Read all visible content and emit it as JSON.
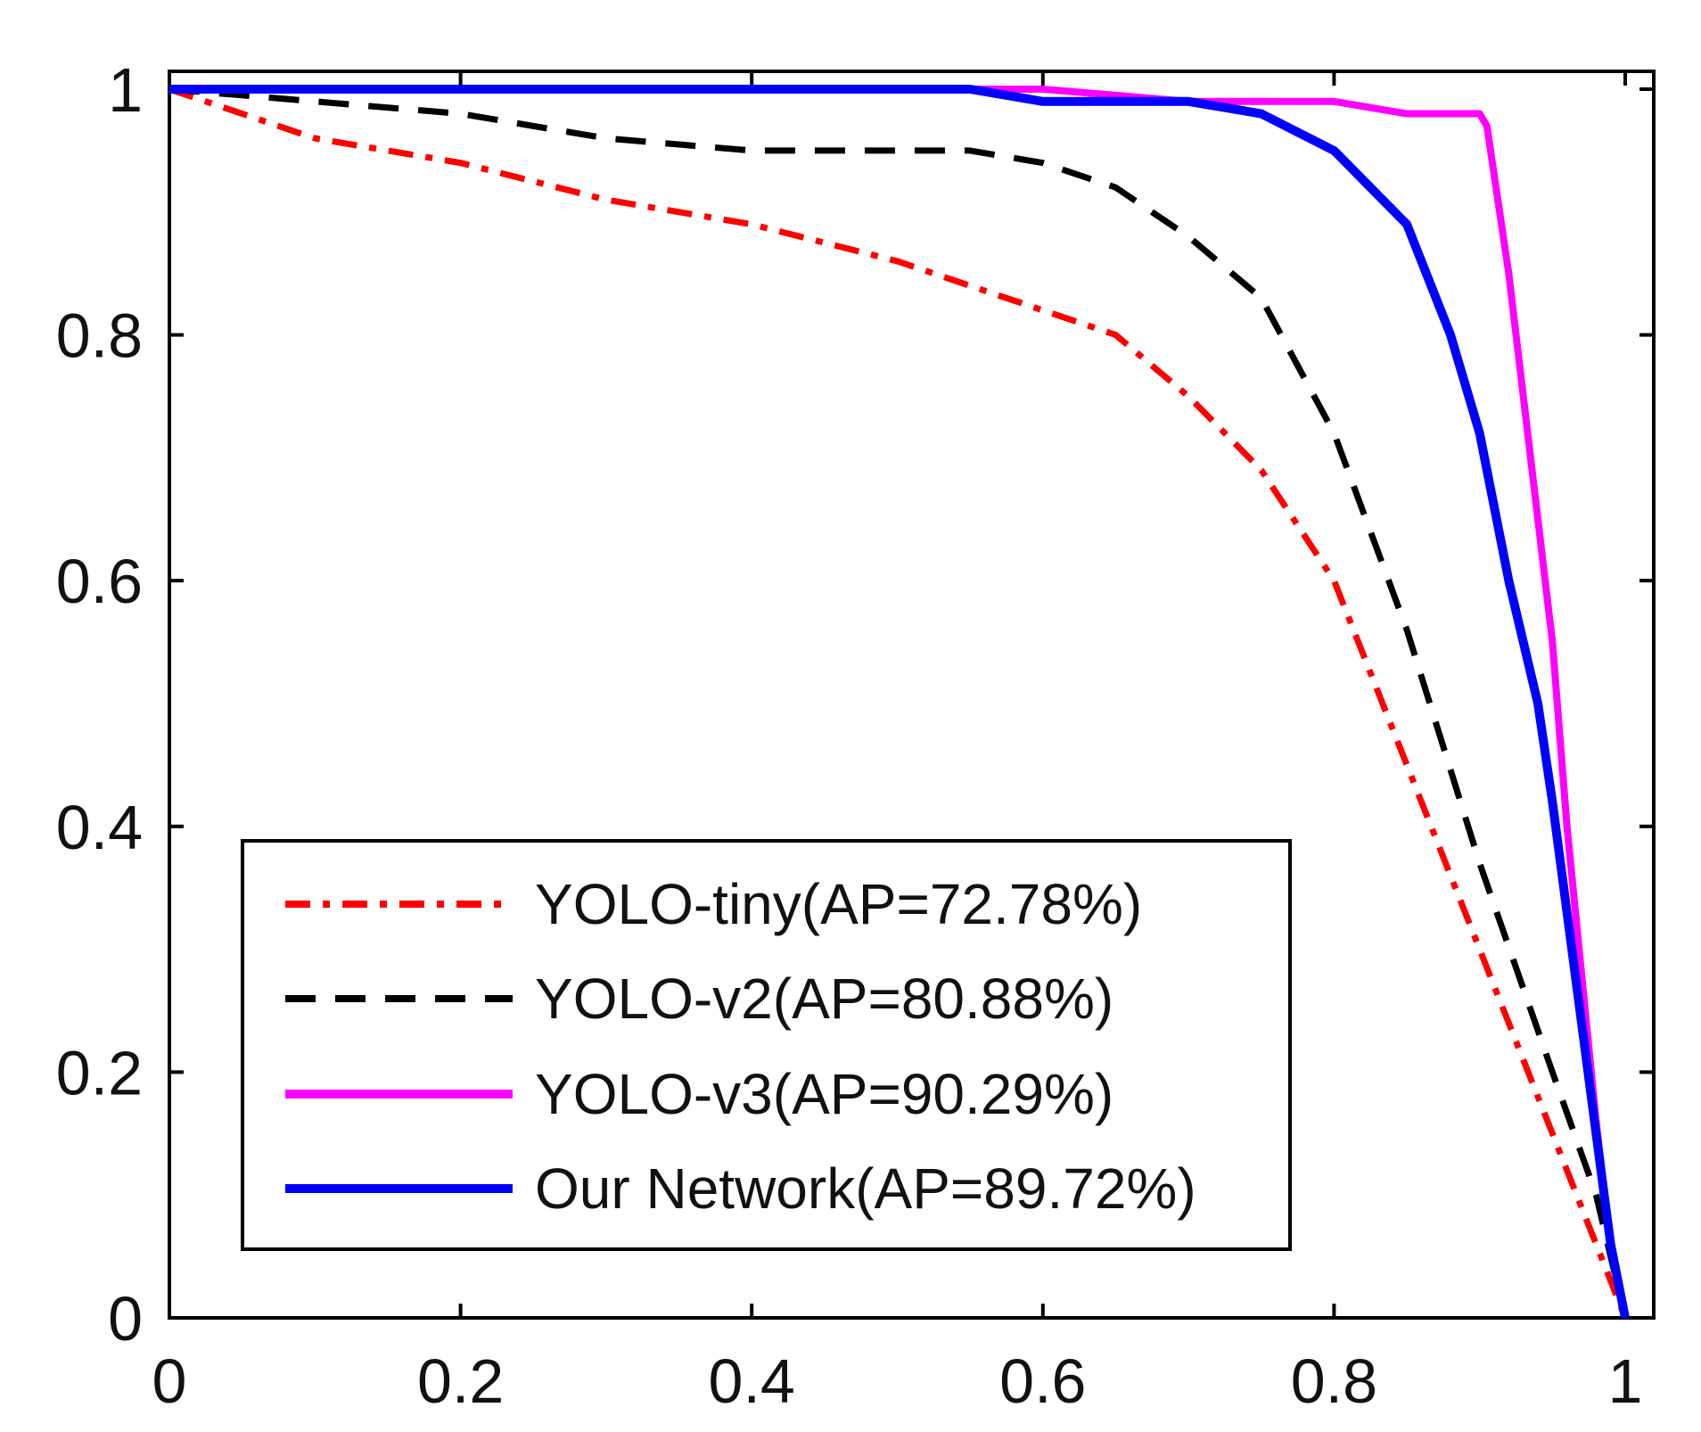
{
  "chart_data": {
    "type": "line",
    "title": "",
    "xlabel": "",
    "ylabel": "",
    "xlim": [
      0,
      1
    ],
    "ylim": [
      0,
      1
    ],
    "xticks": [
      "0",
      "0.2",
      "0.4",
      "0.6",
      "0.8",
      "1"
    ],
    "yticks": [
      "0",
      "0.2",
      "0.4",
      "0.6",
      "0.8",
      "1"
    ],
    "legend_position": "bottom-left",
    "series": [
      {
        "name": "YOLO-tiny(AP=72.78%)",
        "color": "#ff0000",
        "style": "dashdot",
        "x": [
          0,
          0.05,
          0.1,
          0.2,
          0.3,
          0.4,
          0.5,
          0.55,
          0.6,
          0.65,
          0.7,
          0.75,
          0.8,
          0.85,
          0.9,
          0.95,
          0.98,
          1.0
        ],
        "y": [
          1.0,
          0.98,
          0.96,
          0.94,
          0.91,
          0.89,
          0.86,
          0.84,
          0.82,
          0.8,
          0.75,
          0.69,
          0.6,
          0.45,
          0.3,
          0.15,
          0.06,
          0.0
        ]
      },
      {
        "name": "YOLO-v2(AP=80.88%)",
        "color": "#000000",
        "style": "dashed",
        "x": [
          0,
          0.1,
          0.2,
          0.3,
          0.4,
          0.5,
          0.55,
          0.6,
          0.65,
          0.7,
          0.75,
          0.8,
          0.85,
          0.9,
          0.95,
          0.98,
          1.0
        ],
        "y": [
          1.0,
          0.99,
          0.98,
          0.96,
          0.95,
          0.95,
          0.95,
          0.94,
          0.92,
          0.88,
          0.83,
          0.72,
          0.56,
          0.37,
          0.2,
          0.1,
          0.0
        ]
      },
      {
        "name": "YOLO-v3(AP=90.29%)",
        "color": "#ff00ff",
        "style": "solid",
        "x": [
          0,
          0.5,
          0.6,
          0.7,
          0.8,
          0.85,
          0.9,
          0.905,
          0.92,
          0.93,
          0.94,
          0.95,
          0.96,
          0.97,
          0.98,
          0.99,
          1.0
        ],
        "y": [
          1.0,
          1.0,
          1.0,
          0.99,
          0.99,
          0.98,
          0.98,
          0.97,
          0.85,
          0.75,
          0.65,
          0.55,
          0.4,
          0.28,
          0.16,
          0.06,
          0.0
        ]
      },
      {
        "name": "Our Network(AP=89.72%)",
        "color": "#0000ff",
        "style": "solid",
        "x": [
          0,
          0.5,
          0.55,
          0.6,
          0.65,
          0.7,
          0.75,
          0.8,
          0.85,
          0.88,
          0.9,
          0.92,
          0.94,
          0.95,
          0.96,
          0.97,
          0.98,
          0.99,
          1.0
        ],
        "y": [
          1.0,
          1.0,
          1.0,
          0.99,
          0.99,
          0.99,
          0.98,
          0.95,
          0.89,
          0.8,
          0.72,
          0.6,
          0.5,
          0.42,
          0.33,
          0.24,
          0.15,
          0.06,
          0.0
        ]
      }
    ]
  }
}
